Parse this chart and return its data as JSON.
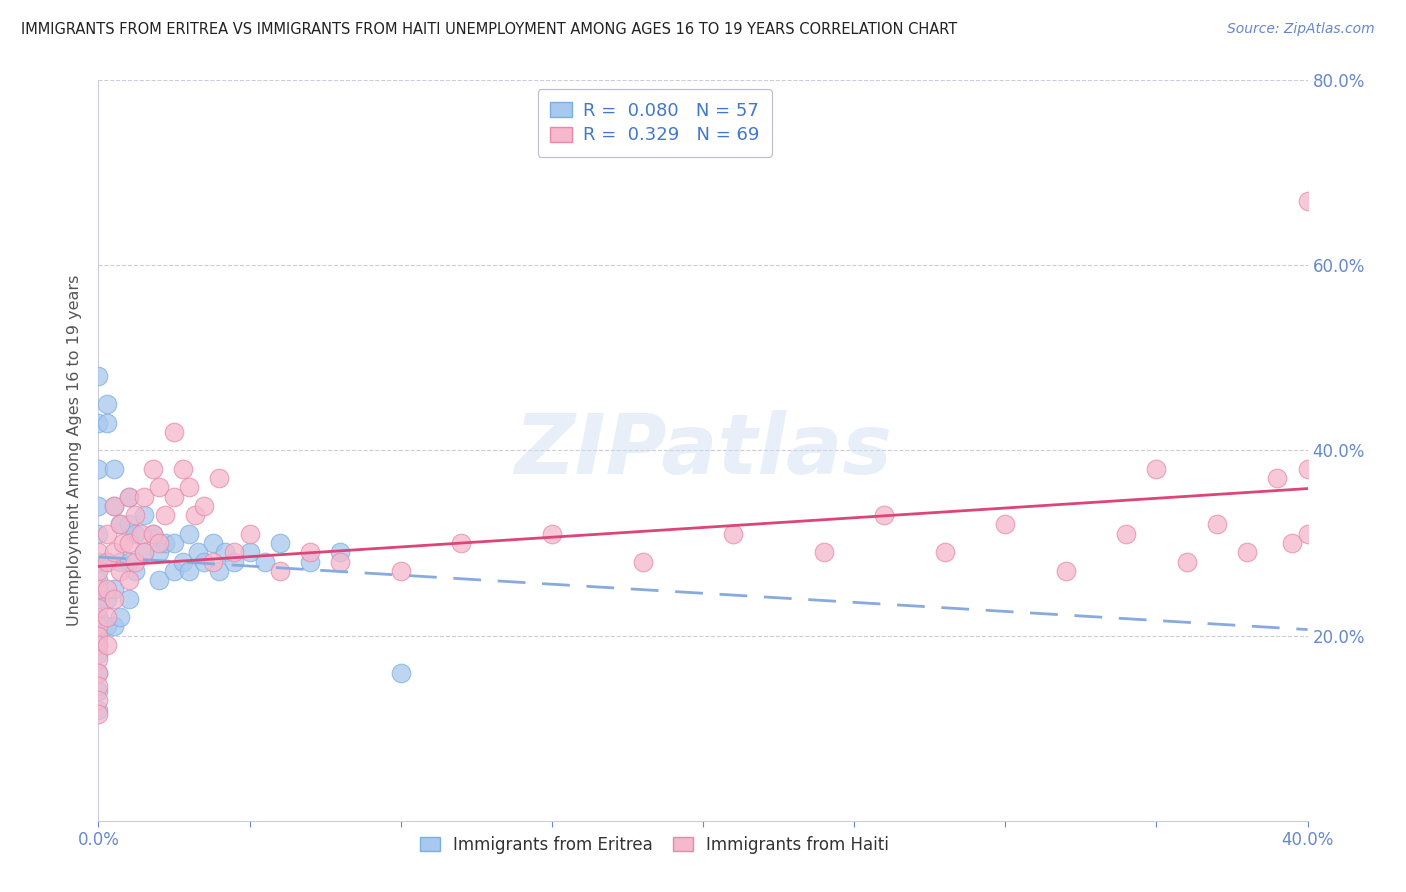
{
  "title": "IMMIGRANTS FROM ERITREA VS IMMIGRANTS FROM HAITI UNEMPLOYMENT AMONG AGES 16 TO 19 YEARS CORRELATION CHART",
  "source": "Source: ZipAtlas.com",
  "ylabel": "Unemployment Among Ages 16 to 19 years",
  "xlim": [
    0.0,
    0.4
  ],
  "ylim": [
    0.0,
    0.8
  ],
  "xticks": [
    0.0,
    0.05,
    0.1,
    0.15,
    0.2,
    0.25,
    0.3,
    0.35,
    0.4
  ],
  "xticklabels_show": {
    "0.0": "0.0%",
    "0.40": "40.0%"
  },
  "yticks_right": [
    0.2,
    0.4,
    0.6,
    0.8
  ],
  "yticklabels_right": [
    "20.0%",
    "40.0%",
    "60.0%",
    "80.0%"
  ],
  "eritrea_color": "#a8c8ee",
  "eritrea_edge_color": "#7ab0e0",
  "haiti_color": "#f5b8cc",
  "haiti_edge_color": "#e888aa",
  "eritrea_R": 0.08,
  "eritrea_N": 57,
  "haiti_R": 0.329,
  "haiti_N": 69,
  "eritrea_label": "Immigrants from Eritrea",
  "haiti_label": "Immigrants from Haiti",
  "watermark": "ZIPatlas",
  "background_color": "#ffffff",
  "grid_color": "#ccccdd",
  "tick_color": "#6688cc",
  "title_color": "#222222",
  "ylabel_color": "#555555",
  "legend_text_color": "#222222",
  "legend_value_color": "#4477cc",
  "eritrea_line_color": "#88aadd",
  "haiti_line_color": "#dd4477",
  "eritrea_x": [
    0.0,
    0.0,
    0.0,
    0.0,
    0.0,
    0.0,
    0.0,
    0.0,
    0.0,
    0.0,
    0.0,
    0.0,
    0.0,
    0.0,
    0.0,
    0.0,
    0.003,
    0.003,
    0.003,
    0.003,
    0.003,
    0.005,
    0.005,
    0.005,
    0.005,
    0.007,
    0.007,
    0.007,
    0.01,
    0.01,
    0.01,
    0.01,
    0.012,
    0.012,
    0.015,
    0.015,
    0.018,
    0.02,
    0.02,
    0.022,
    0.025,
    0.025,
    0.028,
    0.03,
    0.03,
    0.033,
    0.035,
    0.038,
    0.04,
    0.042,
    0.045,
    0.05,
    0.055,
    0.06,
    0.07,
    0.08,
    0.1
  ],
  "eritrea_y": [
    0.48,
    0.43,
    0.38,
    0.34,
    0.31,
    0.28,
    0.26,
    0.24,
    0.22,
    0.21,
    0.2,
    0.19,
    0.18,
    0.16,
    0.14,
    0.12,
    0.45,
    0.43,
    0.28,
    0.24,
    0.21,
    0.38,
    0.34,
    0.25,
    0.21,
    0.32,
    0.28,
    0.22,
    0.35,
    0.32,
    0.28,
    0.24,
    0.31,
    0.27,
    0.33,
    0.29,
    0.31,
    0.29,
    0.26,
    0.3,
    0.3,
    0.27,
    0.28,
    0.31,
    0.27,
    0.29,
    0.28,
    0.3,
    0.27,
    0.29,
    0.28,
    0.29,
    0.28,
    0.3,
    0.28,
    0.29,
    0.16
  ],
  "haiti_x": [
    0.0,
    0.0,
    0.0,
    0.0,
    0.0,
    0.0,
    0.0,
    0.0,
    0.0,
    0.0,
    0.0,
    0.0,
    0.003,
    0.003,
    0.003,
    0.003,
    0.003,
    0.005,
    0.005,
    0.005,
    0.007,
    0.007,
    0.008,
    0.01,
    0.01,
    0.01,
    0.012,
    0.012,
    0.014,
    0.015,
    0.015,
    0.018,
    0.018,
    0.02,
    0.02,
    0.022,
    0.025,
    0.025,
    0.028,
    0.03,
    0.032,
    0.035,
    0.038,
    0.04,
    0.045,
    0.05,
    0.06,
    0.07,
    0.08,
    0.1,
    0.12,
    0.15,
    0.18,
    0.21,
    0.24,
    0.26,
    0.28,
    0.3,
    0.32,
    0.34,
    0.35,
    0.36,
    0.37,
    0.38,
    0.39,
    0.395,
    0.4,
    0.4,
    0.4
  ],
  "haiti_y": [
    0.29,
    0.27,
    0.25,
    0.23,
    0.21,
    0.2,
    0.19,
    0.175,
    0.16,
    0.145,
    0.13,
    0.115,
    0.31,
    0.28,
    0.25,
    0.22,
    0.19,
    0.34,
    0.29,
    0.24,
    0.32,
    0.27,
    0.3,
    0.35,
    0.3,
    0.26,
    0.33,
    0.28,
    0.31,
    0.35,
    0.29,
    0.38,
    0.31,
    0.36,
    0.3,
    0.33,
    0.42,
    0.35,
    0.38,
    0.36,
    0.33,
    0.34,
    0.28,
    0.37,
    0.29,
    0.31,
    0.27,
    0.29,
    0.28,
    0.27,
    0.3,
    0.31,
    0.28,
    0.31,
    0.29,
    0.33,
    0.29,
    0.32,
    0.27,
    0.31,
    0.38,
    0.28,
    0.32,
    0.29,
    0.37,
    0.3,
    0.38,
    0.31,
    0.67
  ]
}
